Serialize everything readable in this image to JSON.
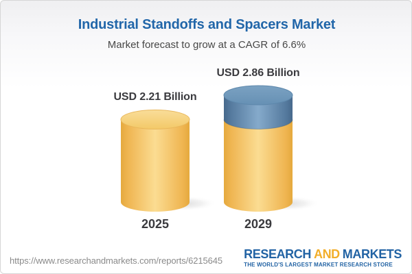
{
  "header": {
    "title": "Industrial Standoffs and Spacers Market",
    "subtitle": "Market forecast to grow at a CAGR of 6.6%"
  },
  "chart_data": {
    "type": "bar",
    "style": "3d-cylinder",
    "title": "Industrial Standoffs and Spacers Market",
    "subtitle": "Market forecast to grow at a CAGR of 6.6%",
    "cagr_percent": 6.6,
    "unit": "USD Billion",
    "categories": [
      "2025",
      "2029"
    ],
    "values": [
      2.21,
      2.86
    ],
    "bar_labels": [
      "USD 2.21 Billion",
      "USD 2.86 Billion"
    ],
    "ylim": [
      0,
      2.86
    ],
    "grid": false,
    "legend": false,
    "bars": [
      {
        "category": "2025",
        "label": "USD 2.21 Billion",
        "value": 2.21,
        "segments": [
          {
            "value": 2.21,
            "palette": "gold"
          }
        ]
      },
      {
        "category": "2029",
        "label": "USD 2.86 Billion",
        "value": 2.86,
        "segments": [
          {
            "value": 2.21,
            "palette": "gold"
          },
          {
            "value": 0.65,
            "palette": "blue"
          }
        ]
      }
    ],
    "palettes": {
      "gold": {
        "edge": "#E5A93D",
        "mid": "#EFB551",
        "light": "#FBDC92",
        "topLight": "#F9DD99",
        "topDark": "#F3C968",
        "rim": "#E9B75B"
      },
      "blue": {
        "edge": "#47698C",
        "mid": "#557A9E",
        "light": "#85AACB",
        "topLight": "#7BA2C2",
        "topDark": "#6690B4",
        "rim": "#5D87AB"
      }
    }
  },
  "colors": {
    "title_blue": "#2166A9",
    "subtitle_gray": "#474747",
    "label_dark": "#3A3A3E",
    "url_gray": "#8A8A8A",
    "logo_blue": "#2263A4",
    "logo_gold": "#F2AE2A",
    "card_border": "#D6D6D6",
    "background_top": "#EFEFF1"
  },
  "footer": {
    "url": "https://www.researchandmarkets.com/reports/6215645",
    "logo": {
      "research": "RESEARCH",
      "and": "AND",
      "markets": "MARKETS",
      "tagline": "THE WORLD'S LARGEST MARKET RESEARCH STORE"
    }
  }
}
